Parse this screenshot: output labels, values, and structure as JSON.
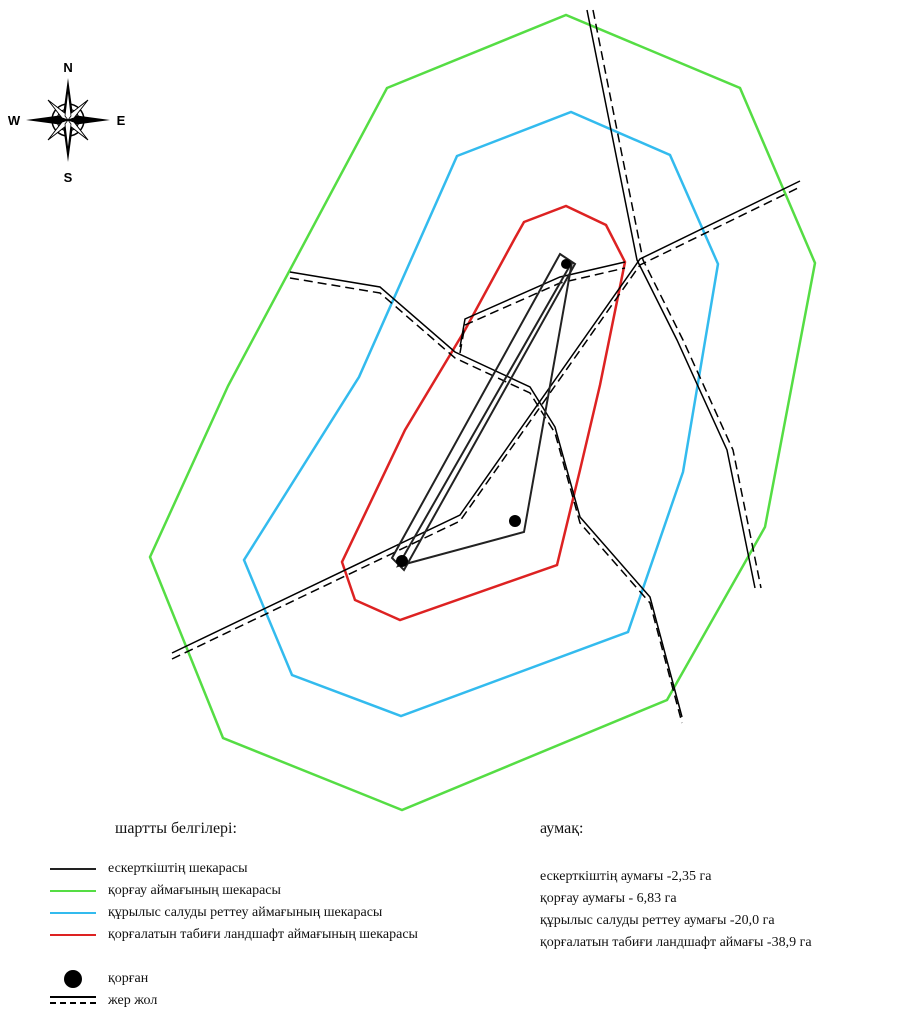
{
  "compass": {
    "north": "N",
    "south": "S",
    "west": "W",
    "east": "E"
  },
  "legend": {
    "title": "шартты белгілері:",
    "items": [
      {
        "id": "monument",
        "label": "ескерткіштің шекарасы",
        "color": "#222222",
        "style": "solid"
      },
      {
        "id": "protection",
        "label": "қорғау аймағының шекарасы",
        "color": "#55dd44",
        "style": "solid"
      },
      {
        "id": "building",
        "label": "құрылыс салуды реттеу аймағының шекарасы",
        "color": "#33bbee",
        "style": "solid"
      },
      {
        "id": "landscape",
        "label": "қорғалатын табиғи ландшафт аймағының шекарасы",
        "color": "#dd2222",
        "style": "solid"
      },
      {
        "id": "kurgan",
        "label": "қорған",
        "color": "#000000",
        "style": "dot"
      },
      {
        "id": "road",
        "label": "жер жол",
        "color": "#000000",
        "style": "double-dashed"
      }
    ]
  },
  "area": {
    "title": "аумақ:",
    "items": [
      "ескерткіштің аумағы -2,35 га",
      "қорғау аумағы - 6,83 га",
      "құрылыс салуды реттеу аумағы -20,0 га",
      "қорғалатын табиғи ландшафт аймағы -38,9 га"
    ]
  }
}
